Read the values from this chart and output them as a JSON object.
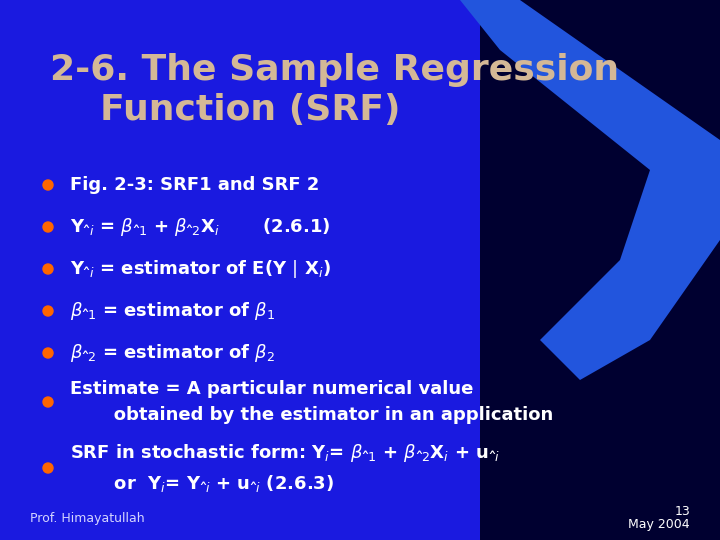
{
  "title_line1": "2-6. The Sample Regression",
  "title_line2": "Function (SRF)",
  "title_color": "#D4B896",
  "bullet_color": "#FF6600",
  "text_color": "#FFFFFF",
  "bg_color_left": "#0000CC",
  "bg_color_right": "#000033",
  "footer_left": "Prof. Himayatullah",
  "footer_right_line1": "13",
  "footer_right_line2": "May 2004",
  "bullet_items": [
    "Fig. 2-3: SRF1 and SRF 2",
    "Y^_i = β^_1 + β^_2X_i       (2.6.1)",
    "Y^_i = estimator of E(Y | X_i)",
    "β^_1 = estimator of β_1",
    "β^_2 = estimator of β_2",
    "Estimate = A particular numerical value\n     obtained by the estimator in an application",
    "SRF in stochastic form: Y_i= β^_1 + β^_2X_i + u^_i\n     or  Y_i= Y^_i + u^_i (2.6.3)"
  ]
}
